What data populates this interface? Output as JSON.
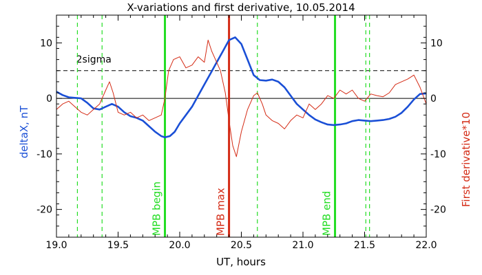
{
  "chart_data": {
    "type": "line",
    "title": "X-variations and first derivative, 10.05.2014",
    "xlabel": "UT, hours",
    "ylabel_left": "deltaX, nT",
    "ylabel_right": "First derivative*10",
    "xlim": [
      19.0,
      22.0
    ],
    "ylim": [
      -25,
      15
    ],
    "x_ticks": [
      "19.0",
      "19.5",
      "20.0",
      "20.5",
      "21.0",
      "21.5",
      "22.0"
    ],
    "y_ticks": [
      "-20",
      "-10",
      "0",
      "10"
    ],
    "series": [
      {
        "name": "deltaX, nT",
        "color": "#1a4fd6",
        "x": [
          19.0,
          19.05,
          19.1,
          19.15,
          19.2,
          19.25,
          19.3,
          19.35,
          19.4,
          19.45,
          19.5,
          19.55,
          19.6,
          19.65,
          19.7,
          19.75,
          19.8,
          19.85,
          19.88,
          19.92,
          19.96,
          20.0,
          20.05,
          20.1,
          20.15,
          20.2,
          20.25,
          20.3,
          20.35,
          20.4,
          20.45,
          20.5,
          20.55,
          20.6,
          20.65,
          20.7,
          20.75,
          20.8,
          20.85,
          20.9,
          20.95,
          21.0,
          21.05,
          21.1,
          21.15,
          21.2,
          21.25,
          21.3,
          21.35,
          21.4,
          21.45,
          21.5,
          21.55,
          21.6,
          21.65,
          21.7,
          21.75,
          21.8,
          21.85,
          21.9,
          21.95,
          22.0
        ],
        "values": [
          1.2,
          0.6,
          0.2,
          0.1,
          0.0,
          -0.8,
          -1.8,
          -2.0,
          -1.5,
          -1.0,
          -1.5,
          -2.5,
          -3.2,
          -3.5,
          -4.0,
          -5.0,
          -6.0,
          -6.8,
          -7.0,
          -6.8,
          -6.0,
          -4.5,
          -3.0,
          -1.5,
          0.5,
          2.5,
          4.5,
          6.5,
          8.5,
          10.5,
          11.0,
          9.8,
          7.0,
          4.2,
          3.3,
          3.2,
          3.4,
          3.0,
          2.0,
          0.5,
          -1.0,
          -2.0,
          -3.0,
          -3.8,
          -4.3,
          -4.7,
          -4.8,
          -4.7,
          -4.5,
          -4.1,
          -3.9,
          -4.0,
          -4.1,
          -4.0,
          -3.9,
          -3.7,
          -3.3,
          -2.6,
          -1.5,
          -0.2,
          0.8,
          0.9
        ]
      },
      {
        "name": "First derivative*10",
        "color": "#d42a14",
        "x": [
          19.0,
          19.05,
          19.1,
          19.15,
          19.2,
          19.25,
          19.3,
          19.35,
          19.4,
          19.43,
          19.46,
          19.5,
          19.55,
          19.6,
          19.65,
          19.7,
          19.75,
          19.8,
          19.85,
          19.88,
          19.91,
          19.95,
          20.0,
          20.05,
          20.1,
          20.15,
          20.2,
          20.23,
          20.26,
          20.3,
          20.33,
          20.37,
          20.4,
          20.43,
          20.46,
          20.5,
          20.55,
          20.6,
          20.63,
          20.67,
          20.7,
          20.75,
          20.8,
          20.85,
          20.9,
          20.95,
          21.0,
          21.05,
          21.1,
          21.15,
          21.2,
          21.25,
          21.3,
          21.35,
          21.4,
          21.45,
          21.5,
          21.55,
          21.6,
          21.65,
          21.7,
          21.75,
          21.8,
          21.85,
          21.9,
          21.95,
          22.0
        ],
        "values": [
          -2.0,
          -1.0,
          -0.5,
          -1.5,
          -2.5,
          -3.0,
          -2.0,
          -1.0,
          1.5,
          3.0,
          1.0,
          -2.5,
          -3.0,
          -2.5,
          -3.5,
          -3.0,
          -4.0,
          -3.5,
          -3.0,
          0.0,
          5.0,
          7.0,
          7.5,
          5.5,
          6.0,
          7.5,
          6.5,
          10.5,
          8.5,
          6.5,
          5.0,
          1.0,
          -4.0,
          -8.5,
          -10.5,
          -6.0,
          -2.0,
          0.5,
          1.0,
          -1.0,
          -3.0,
          -4.0,
          -4.5,
          -5.5,
          -4.0,
          -3.0,
          -3.5,
          -1.0,
          -2.0,
          -1.0,
          0.5,
          0.0,
          1.5,
          0.8,
          1.5,
          0.0,
          -0.5,
          0.8,
          0.5,
          0.3,
          1.0,
          2.5,
          3.0,
          3.5,
          4.2,
          2.0,
          -1.0
        ]
      }
    ],
    "threshold": {
      "label": "2sigma",
      "value": 5,
      "style": "dashed"
    },
    "vlines": [
      {
        "x": 19.17,
        "color": "#22dd22",
        "style": "dashed"
      },
      {
        "x": 19.37,
        "color": "#22dd22",
        "style": "dashed"
      },
      {
        "x": 19.88,
        "color": "#22dd22",
        "style": "solid",
        "label": "MPB begin"
      },
      {
        "x": 20.4,
        "color": "#d42a14",
        "style": "solid",
        "label": "MPB max"
      },
      {
        "x": 20.63,
        "color": "#22dd22",
        "style": "dashed"
      },
      {
        "x": 21.26,
        "color": "#22dd22",
        "style": "solid",
        "label": "MPB end"
      },
      {
        "x": 21.51,
        "color": "#22dd22",
        "style": "dashed"
      },
      {
        "x": 21.54,
        "color": "#22dd22",
        "style": "dashed"
      }
    ],
    "colors": {
      "left_label": "#1a4fd6",
      "right_label": "#d42a14",
      "frame": "#000000"
    },
    "grid": false
  }
}
